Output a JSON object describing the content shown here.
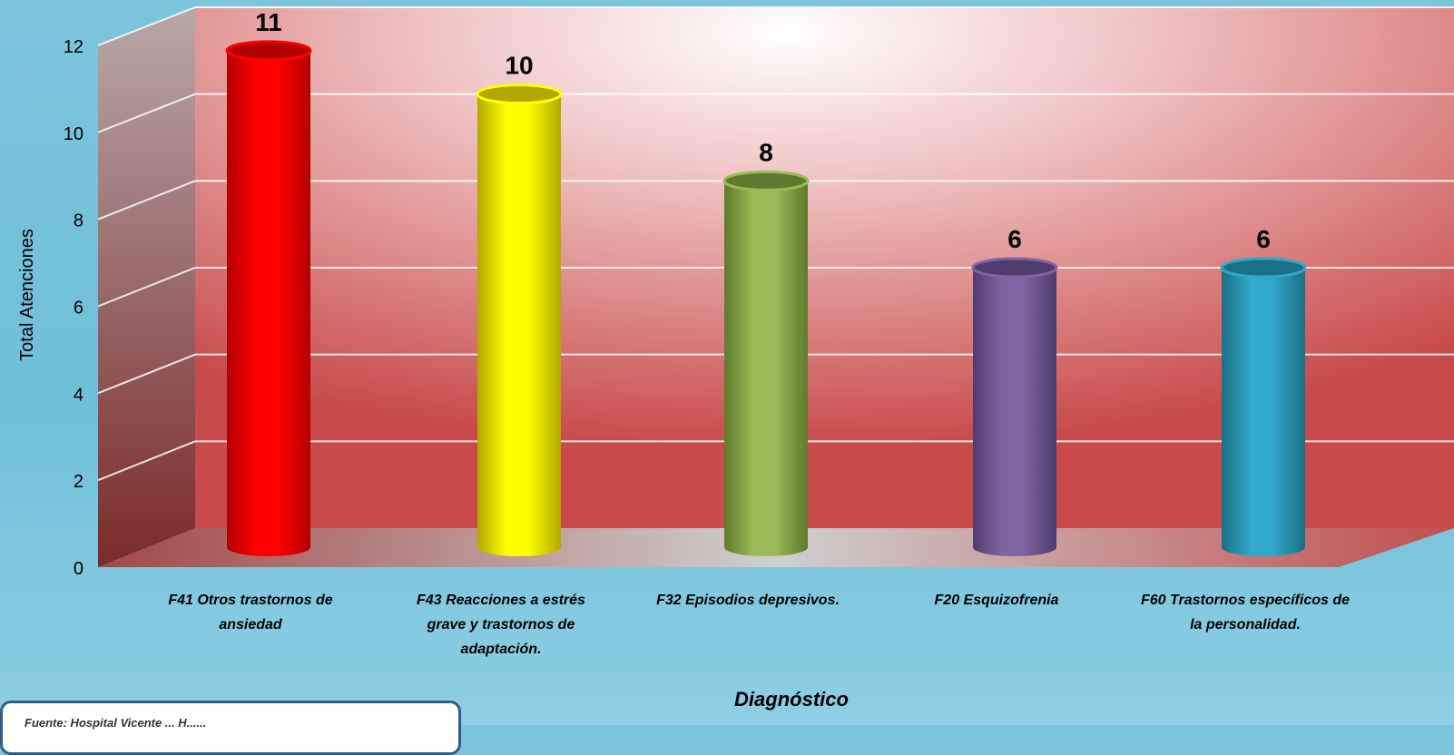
{
  "chart_data": {
    "type": "bar",
    "title": "",
    "xlabel": "Diagnóstico",
    "ylabel": "Total Atenciones",
    "ylim": [
      0,
      12
    ],
    "yticks": [
      0,
      2,
      4,
      6,
      8,
      10,
      12
    ],
    "grid": true,
    "categories": [
      [
        "F41 Otros trastornos de",
        "ansiedad"
      ],
      [
        "F43 Reacciones a estrés",
        "grave y trastornos de",
        "adaptación."
      ],
      [
        "F32 Episodios depresivos."
      ],
      [
        "F20 Esquizofrenia"
      ],
      [
        "F60 Trastornos específicos de",
        "la personalidad."
      ]
    ],
    "values": [
      11,
      10,
      8,
      6,
      6
    ],
    "data_labels": [
      "11",
      "10",
      "8",
      "6",
      "6"
    ],
    "colors": [
      "#ff0000",
      "#ffff00",
      "#9bbb59",
      "#8064a2",
      "#31a9c9"
    ],
    "colors_dark": [
      "#b30000",
      "#b3a800",
      "#5f7a2d",
      "#4f3c6d",
      "#1c6f86"
    ]
  },
  "source_note": "Fuente: Hospital Vicente ... H......"
}
